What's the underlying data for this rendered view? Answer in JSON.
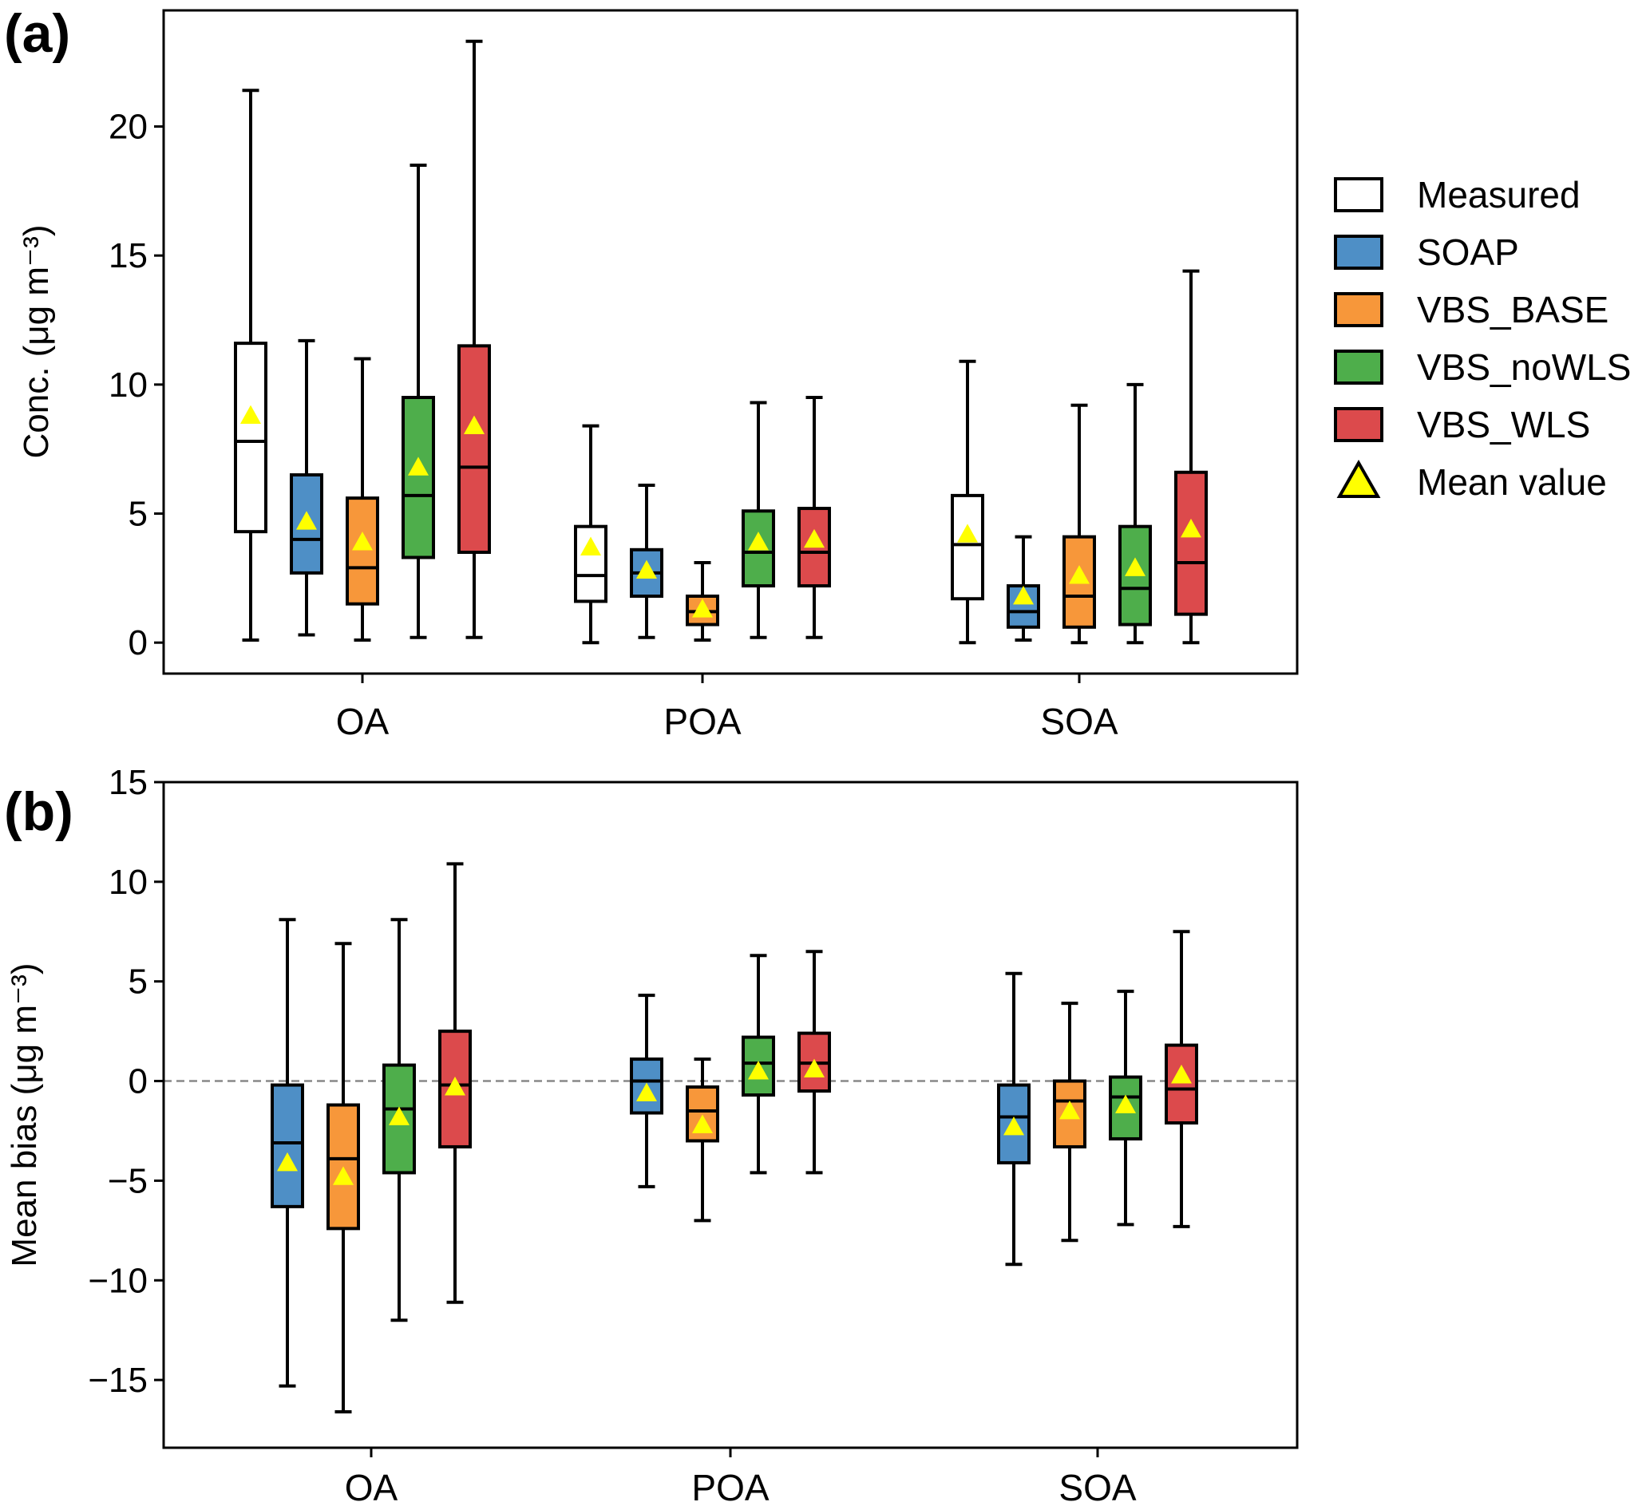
{
  "figure_labels": {
    "panel_a": "(a)",
    "panel_b": "(b)"
  },
  "legend": {
    "entries": [
      {
        "name": "Measured",
        "color": "#ffffff"
      },
      {
        "name": "SOAP",
        "color": "#4e8fc6"
      },
      {
        "name": "VBS_BASE",
        "color": "#f7973a"
      },
      {
        "name": "VBS_noWLS",
        "color": "#4eae4b"
      },
      {
        "name": "VBS_WLS",
        "color": "#dc4a4c"
      }
    ],
    "mean_label": "Mean value",
    "mean_color": "#ffff00"
  },
  "chart_data": [
    {
      "type": "box",
      "panel": "(a)",
      "ylabel": "Conc. (μg m⁻³)",
      "ylim": [
        -1.2,
        24.5
      ],
      "yticks": [
        0,
        5,
        10,
        15,
        20
      ],
      "ytick_labels": [
        "0",
        "5",
        "10",
        "15",
        "20"
      ],
      "categories": [
        "OA",
        "POA",
        "SOA"
      ],
      "series": [
        {
          "name": "Measured",
          "color": "#ffffff",
          "boxes": [
            {
              "whislo": 0.1,
              "q1": 4.3,
              "med": 7.8,
              "q3": 11.6,
              "whishi": 21.4,
              "mean": 8.8
            },
            {
              "whislo": 0.0,
              "q1": 1.6,
              "med": 2.6,
              "q3": 4.5,
              "whishi": 8.4,
              "mean": 3.7
            },
            {
              "whislo": 0.0,
              "q1": 1.7,
              "med": 3.8,
              "q3": 5.7,
              "whishi": 10.9,
              "mean": 4.2
            }
          ]
        },
        {
          "name": "SOAP",
          "color": "#4e8fc6",
          "boxes": [
            {
              "whislo": 0.3,
              "q1": 2.7,
              "med": 4.0,
              "q3": 6.5,
              "whishi": 11.7,
              "mean": 4.7
            },
            {
              "whislo": 0.2,
              "q1": 1.8,
              "med": 2.7,
              "q3": 3.6,
              "whishi": 6.1,
              "mean": 2.8
            },
            {
              "whislo": 0.1,
              "q1": 0.6,
              "med": 1.2,
              "q3": 2.2,
              "whishi": 4.1,
              "mean": 1.8
            }
          ]
        },
        {
          "name": "VBS_BASE",
          "color": "#f7973a",
          "boxes": [
            {
              "whislo": 0.1,
              "q1": 1.5,
              "med": 2.9,
              "q3": 5.6,
              "whishi": 11.0,
              "mean": 3.9
            },
            {
              "whislo": 0.1,
              "q1": 0.7,
              "med": 1.2,
              "q3": 1.8,
              "whishi": 3.1,
              "mean": 1.3
            },
            {
              "whislo": 0.0,
              "q1": 0.6,
              "med": 1.8,
              "q3": 4.1,
              "whishi": 9.2,
              "mean": 2.6
            }
          ]
        },
        {
          "name": "VBS_noWLS",
          "color": "#4eae4b",
          "boxes": [
            {
              "whislo": 0.2,
              "q1": 3.3,
              "med": 5.7,
              "q3": 9.5,
              "whishi": 18.5,
              "mean": 6.8
            },
            {
              "whislo": 0.2,
              "q1": 2.2,
              "med": 3.5,
              "q3": 5.1,
              "whishi": 9.3,
              "mean": 3.9
            },
            {
              "whislo": 0.0,
              "q1": 0.7,
              "med": 2.1,
              "q3": 4.5,
              "whishi": 10.0,
              "mean": 2.9
            }
          ]
        },
        {
          "name": "VBS_WLS",
          "color": "#dc4a4c",
          "boxes": [
            {
              "whislo": 0.2,
              "q1": 3.5,
              "med": 6.8,
              "q3": 11.5,
              "whishi": 23.3,
              "mean": 8.4
            },
            {
              "whislo": 0.2,
              "q1": 2.2,
              "med": 3.5,
              "q3": 5.2,
              "whishi": 9.5,
              "mean": 4.0
            },
            {
              "whislo": 0.0,
              "q1": 1.1,
              "med": 3.1,
              "q3": 6.6,
              "whishi": 14.4,
              "mean": 4.4
            }
          ]
        }
      ]
    },
    {
      "type": "box",
      "panel": "(b)",
      "ylabel": "Mean bias (μg m⁻³)",
      "ylim": [
        -18.4,
        15
      ],
      "yticks": [
        -15,
        -10,
        -5,
        0,
        5,
        10,
        15
      ],
      "ytick_labels": [
        "−15",
        "−10",
        "−5",
        "0",
        "5",
        "10",
        "15"
      ],
      "reference_line": 0,
      "categories": [
        "OA",
        "POA",
        "SOA"
      ],
      "series": [
        {
          "name": "SOAP",
          "color": "#4e8fc6",
          "boxes": [
            {
              "whislo": -15.3,
              "q1": -6.3,
              "med": -3.1,
              "q3": -0.2,
              "whishi": 8.1,
              "mean": -4.1
            },
            {
              "whislo": -5.3,
              "q1": -1.6,
              "med": 0.0,
              "q3": 1.1,
              "whishi": 4.3,
              "mean": -0.6
            },
            {
              "whislo": -9.2,
              "q1": -4.1,
              "med": -1.8,
              "q3": -0.2,
              "whishi": 5.4,
              "mean": -2.3
            }
          ]
        },
        {
          "name": "VBS_BASE",
          "color": "#f7973a",
          "boxes": [
            {
              "whislo": -16.6,
              "q1": -7.4,
              "med": -3.9,
              "q3": -1.2,
              "whishi": 6.9,
              "mean": -4.8
            },
            {
              "whislo": -7.0,
              "q1": -3.0,
              "med": -1.5,
              "q3": -0.3,
              "whishi": 1.1,
              "mean": -2.2
            },
            {
              "whislo": -8.0,
              "q1": -3.3,
              "med": -1.0,
              "q3": 0.0,
              "whishi": 3.9,
              "mean": -1.5
            }
          ]
        },
        {
          "name": "VBS_noWLS",
          "color": "#4eae4b",
          "boxes": [
            {
              "whislo": -12.0,
              "q1": -4.6,
              "med": -1.4,
              "q3": 0.8,
              "whishi": 8.1,
              "mean": -1.8
            },
            {
              "whislo": -4.6,
              "q1": -0.7,
              "med": 0.9,
              "q3": 2.2,
              "whishi": 6.3,
              "mean": 0.5
            },
            {
              "whislo": -7.2,
              "q1": -2.9,
              "med": -0.8,
              "q3": 0.2,
              "whishi": 4.5,
              "mean": -1.2
            }
          ]
        },
        {
          "name": "VBS_WLS",
          "color": "#dc4a4c",
          "boxes": [
            {
              "whislo": -11.1,
              "q1": -3.3,
              "med": -0.2,
              "q3": 2.5,
              "whishi": 10.9,
              "mean": -0.3
            },
            {
              "whislo": -4.6,
              "q1": -0.5,
              "med": 0.9,
              "q3": 2.4,
              "whishi": 6.5,
              "mean": 0.6
            },
            {
              "whislo": -7.3,
              "q1": -2.1,
              "med": -0.4,
              "q3": 1.8,
              "whishi": 7.5,
              "mean": 0.3
            }
          ]
        }
      ]
    }
  ]
}
